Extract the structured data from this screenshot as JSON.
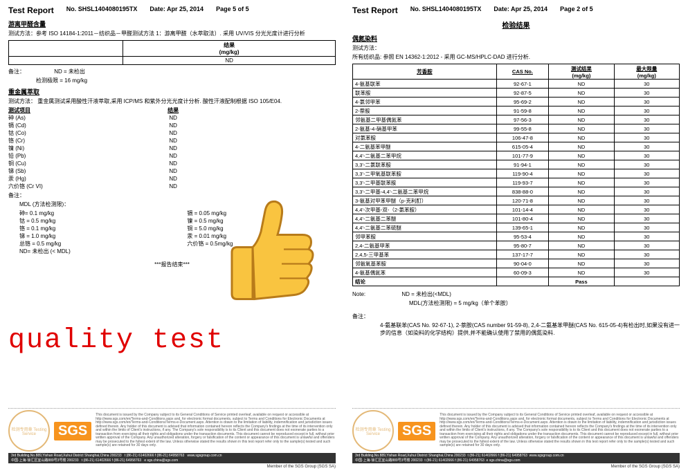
{
  "report_no": "No. SHSL1404080195TX",
  "date": "Date: Apr 25, 2014",
  "title": "Test Report",
  "left": {
    "page": "Page 5 of 5",
    "sec1_title": "游离甲醛含量",
    "sec1_method": "测试方法：参考 ISO 14184-1:2011－纺织品－甲醛测试方法 1：游离甲醛（水萃取法）. 采用 UV/VIS 分光光度计进行分析",
    "result_header": "结果",
    "unit": "(mg/kg)",
    "result_value": "ND",
    "note_label": "备注：",
    "note1": "ND = 未检出",
    "note2": "检测极限 = 16 mg/kg",
    "sec2_title": "重金属萃取",
    "sec2_method": "测试方法：    重金属测试采用酸性汗液萃取,采用 ICP/MS 和紫外分光光度计分析. 酸性汗液配制根据 ISO 105/E04.",
    "metal_header_item": "测试项目",
    "metal_header_result": "结果",
    "metals": [
      {
        "n": "砷 (As)",
        "r": "ND"
      },
      {
        "n": "镉 (Cd)",
        "r": "ND"
      },
      {
        "n": "钴 (Co)",
        "r": "ND"
      },
      {
        "n": "铬 (Cr)",
        "r": "ND"
      },
      {
        "n": "镍 (Ni)",
        "r": "ND"
      },
      {
        "n": "铅 (Pb)",
        "r": "ND"
      },
      {
        "n": "铜 (Cu)",
        "r": "ND"
      },
      {
        "n": "锑 (Sb)",
        "r": "ND"
      },
      {
        "n": "汞 (Hg)",
        "r": "ND"
      },
      {
        "n": "六价铬 (Cr VI)",
        "r": "ND"
      }
    ],
    "mdl_title": "MDL (方法检测限)：",
    "mdl_lines": [
      "砷= 0.1 mg/kg",
      "镉 = 0.05 mg/kg",
      "钴 = 0.5 mg/kg",
      "镍 = 0.5 mg/kg",
      "铬 = 0.1 mg/kg",
      "铜 = 5.0 mg/kg",
      "锑 = 1.0 mg/kg",
      "汞 = 0.01 mg/kg",
      "总铬 = 0.5 mg/kg",
      "六价铬 = 0.5mg/kg",
      "ND= 未检出 (< MDL)",
      ""
    ],
    "end_report": "***报告结束***"
  },
  "right": {
    "page": "Page 2 of 5",
    "center": "检验结果",
    "sec_title": "偶氮染料",
    "method_label": "测试方法：",
    "method_text": "所有纺织品: 参照 EN 14362-1:2012 - 采用 GC-MS/HPLC-DAD 进行分析.",
    "th_amine": "芳香胺",
    "th_cas": "CAS No.",
    "th_result": "测试结果",
    "th_result_unit": "(mg/kg)",
    "th_max": "最大限量",
    "th_max_unit": "(mg/kg)",
    "rows": [
      {
        "a": "4-氨基联苯",
        "c": "92-67-1",
        "r": "ND",
        "m": "30"
      },
      {
        "a": "联苯胺",
        "c": "92-87-5",
        "r": "ND",
        "m": "30"
      },
      {
        "a": "4-氯邻甲苯",
        "c": "95-69-2",
        "r": "ND",
        "m": "30"
      },
      {
        "a": "2-萘胺",
        "c": "91-59-8",
        "r": "ND",
        "m": "30"
      },
      {
        "a": "邻氨基二甲基偶氮苯",
        "c": "97-56-3",
        "r": "ND",
        "m": "30"
      },
      {
        "a": "2-氨基-4-硝基甲苯",
        "c": "99-55-8",
        "r": "ND",
        "m": "30"
      },
      {
        "a": "对氯苯胺",
        "c": "106-47-8",
        "r": "ND",
        "m": "30"
      },
      {
        "a": "4-二氨基苯甲醚",
        "c": "615-05-4",
        "r": "ND",
        "m": "30"
      },
      {
        "a": "4,4'-二氨基二苯甲烷",
        "c": "101-77-9",
        "r": "ND",
        "m": "30"
      },
      {
        "a": "3,3'-二氯联苯胺",
        "c": "91-94-1",
        "r": "ND",
        "m": "30"
      },
      {
        "a": "3,3'-二甲氧基联苯胺",
        "c": "119-90-4",
        "r": "ND",
        "m": "30"
      },
      {
        "a": "3,3'-二甲基联苯胺",
        "c": "119-93-7",
        "r": "ND",
        "m": "30"
      },
      {
        "a": "3,3'-二甲基-4,4'-二氨基二苯甲烷",
        "c": "838-88-0",
        "r": "ND",
        "m": "30"
      },
      {
        "a": "3-氨基对甲苯甲醚（p-克利酊）",
        "c": "120-71-8",
        "r": "ND",
        "m": "30"
      },
      {
        "a": "4,4'-次甲基-双-（2-氯苯胺）",
        "c": "101-14-4",
        "r": "ND",
        "m": "30"
      },
      {
        "a": "4,4'-二氨基二苯醚",
        "c": "101-80-4",
        "r": "ND",
        "m": "30"
      },
      {
        "a": "4,4'-二氨基二苯硫醚",
        "c": "139-65-1",
        "r": "ND",
        "m": "30"
      },
      {
        "a": "邻甲苯胺",
        "c": "95-53-4",
        "r": "ND",
        "m": "30"
      },
      {
        "a": "2,4-二氨基甲苯",
        "c": "95-80-7",
        "r": "ND",
        "m": "30"
      },
      {
        "a": "2,4,5-三甲基苯",
        "c": "137-17-7",
        "r": "ND",
        "m": "30"
      },
      {
        "a": "邻氨氧基苯胺",
        "c": "90-04-0",
        "r": "ND",
        "m": "30"
      },
      {
        "a": "4-氨基偶氮苯",
        "c": "60-09-3",
        "r": "ND",
        "m": "30"
      }
    ],
    "conclusion_label": "结论",
    "conclusion_value": "Pass",
    "note_label": "Note:",
    "note1": "ND = 未检出(<MDL)",
    "note2": "MDL(方法检测限) = 5 mg/kg（单个苯胺）",
    "remark_label": "备注：",
    "remark_text": "4-氨基联苯(CAS No. 92-67-1), 2-萘胺(CAS number 91-59-8), 2,4-二氨基苯甲醚(CAS No. 615-05-4)有检出时,如果没有进一步的信息（如染料的化学结构）提供,并不能确认使用了禁用的偶氮染料."
  },
  "footer": {
    "legal": "This document is issued by the Company subject to its General Conditions of Service printed overleaf, available on request or accessible at http://www.sgs.com/en/Terms-and-Conditions.aspx and, for electronic format documents, subject to Terms and Conditions for Electronic Documents at http://www.sgs.com/en/Terms-and-Conditions/Terms-e-Document.aspx. Attention is drawn to the limitation of liability, indemnification and jurisdiction issues defined therein. Any holder of this document is advised that information contained hereon reflects the Company's findings at the time of its intervention only and within the limits of Client's instructions, if any. The Company's sole responsibility is to its Client and this document does not exonerate parties to a transaction from exercising all their rights and obligations under the transaction documents. This document cannot be reproduced except in full, without prior written approval of the Company. Any unauthorized alteration, forgery or falsification of the content or appearance of this document is unlawful and offenders may be prosecuted to the fullest extent of the law. Unless otherwise stated the results shown in this test report refer only to the sample(s) tested and such sample(s) are retained for 30 days only.",
    "attention": "Attention: To check the authenticity of testing /inspection report & certificate, please contact us at telephone: (86-755) 8307 1443, or email: CN.Doccheck@sgs.com",
    "addr_cn": "中国·上海·徐汇区宜山路889号3号楼 200233",
    "addr_en": "3rd Building,No.889,Yishan Road,Xuhui District Shanghai,China  200233",
    "tel": "t  (86-21) 61402666    f  (86-21) 64958763",
    "tel2": "t  (86-21) 61402666    f  (86-21) 64958763",
    "web": "www.sgsgroup.com.cn",
    "email": "e sgs.china@sgs.com",
    "member": "Member of the SGS Group (SGS SA)",
    "stamp": "检测专用章 Testing Service",
    "logo": "SGS"
  },
  "overlay": "quality test",
  "colors": {
    "overlay_text": "#e00000",
    "thumb_fill": "#f9c440",
    "thumb_stroke": "#b87b1a",
    "stamp": "#d89b3e",
    "sgs_bg": "#f7941e"
  }
}
